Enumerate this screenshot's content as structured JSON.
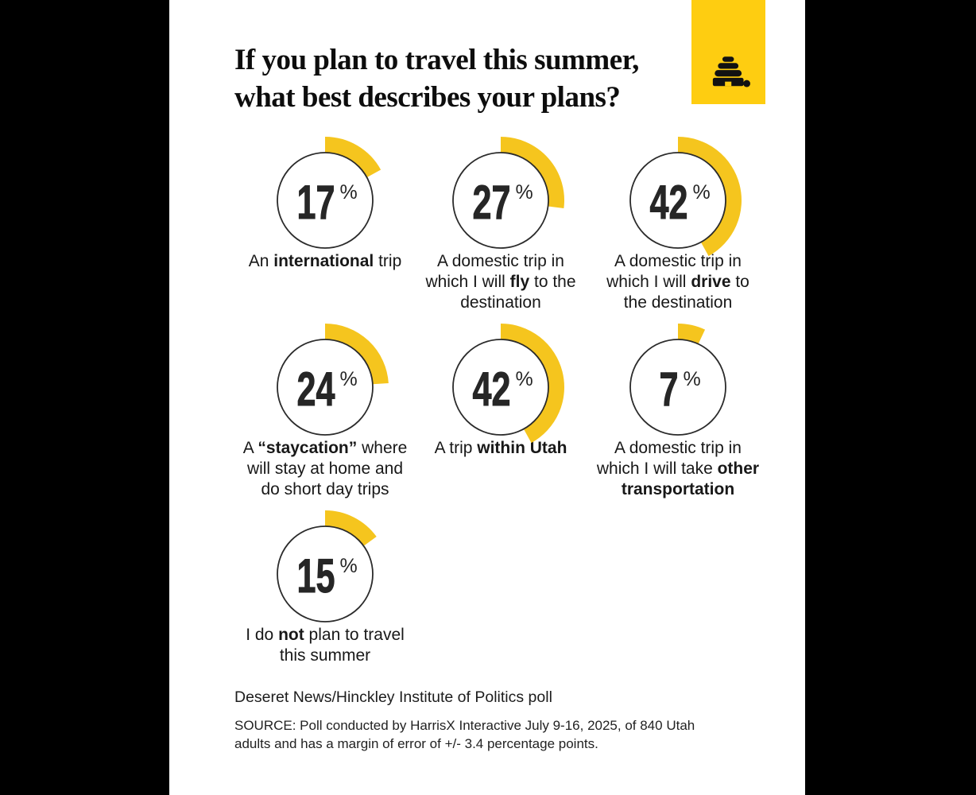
{
  "colors": {
    "background": "#000000",
    "panel": "#FFFFFF",
    "logo_yellow": "#FECD11",
    "arc_yellow": "#F5C51E",
    "ink": "#151515"
  },
  "header": {
    "title_lines": [
      "If you plan to travel this summer,",
      "what best describes your plans?"
    ]
  },
  "logo": {
    "icon": "deseret-news-beehive-icon",
    "background": "#FECD11"
  },
  "chart_data": {
    "type": "donut",
    "title": "If you plan to travel this summer, what best describes your plans?",
    "unit": "%",
    "arc_start": "12 o'clock, clockwise",
    "legend_position": "below each donut",
    "items": [
      {
        "value": 17,
        "label_lines": [
          [
            {
              "t": "An "
            },
            {
              "t": "international",
              "b": 1
            },
            {
              "t": " trip"
            }
          ]
        ]
      },
      {
        "value": 27,
        "label_lines": [
          [
            {
              "t": "A domestic trip in"
            }
          ],
          [
            {
              "t": "which I will "
            },
            {
              "t": "fly",
              "b": 1
            },
            {
              "t": " to the"
            }
          ],
          [
            {
              "t": "destination"
            }
          ]
        ]
      },
      {
        "value": 42,
        "label_lines": [
          [
            {
              "t": "A domestic trip in"
            }
          ],
          [
            {
              "t": "which I will "
            },
            {
              "t": "drive",
              "b": 1
            },
            {
              "t": " to"
            }
          ],
          [
            {
              "t": "the destination"
            }
          ]
        ]
      },
      {
        "value": 24,
        "label_lines": [
          [
            {
              "t": "A "
            },
            {
              "t": "“staycation”",
              "b": 1
            },
            {
              "t": " where"
            }
          ],
          [
            {
              "t": "will stay at home and"
            }
          ],
          [
            {
              "t": "do short day trips"
            }
          ]
        ]
      },
      {
        "value": 42,
        "label_lines": [
          [
            {
              "t": "A trip "
            },
            {
              "t": "within Utah",
              "b": 1
            }
          ]
        ]
      },
      {
        "value": 7,
        "label_lines": [
          [
            {
              "t": "A domestic trip in"
            }
          ],
          [
            {
              "t": "which I will take "
            },
            {
              "t": "other",
              "b": 1
            }
          ],
          [
            {
              "t": "transportation",
              "b": 1
            }
          ]
        ]
      },
      {
        "value": 15,
        "label_lines": [
          [
            {
              "t": "I do "
            },
            {
              "t": "not",
              "b": 1
            },
            {
              "t": " plan to travel"
            }
          ],
          [
            {
              "t": "this summer"
            }
          ]
        ]
      }
    ]
  },
  "footer": {
    "poll_name": "Deseret News/Hinckley Institute of Politics poll",
    "source_lines": [
      "SOURCE: Poll conducted by HarrisX Interactive July 9-16, 2025, of 840 Utah",
      "adults and has a margin of error of +/- 3.4 percentage points."
    ]
  }
}
